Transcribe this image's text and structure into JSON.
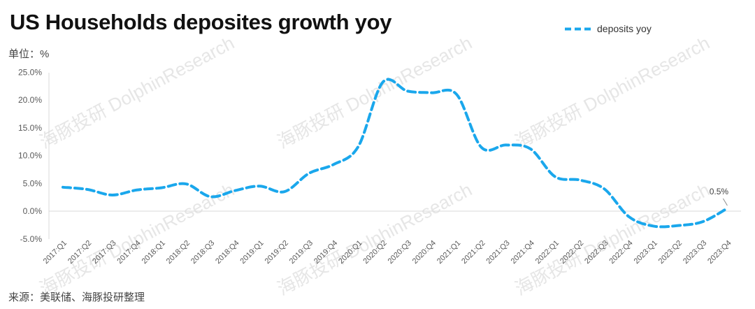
{
  "title": "US Households deposites growth yoy",
  "unit_label": "单位：%",
  "source_label": "来源：美联储、海豚投研整理",
  "watermark": "海豚投研 DolphinResearch",
  "colors": {
    "series": "#1aa7ec",
    "axis": "#d9d9d9",
    "text": "#595959"
  },
  "chart_data": {
    "type": "line",
    "title": "US Households deposites growth yoy",
    "xlabel": "",
    "ylabel": "单位：%",
    "ylim": [
      -5,
      25
    ],
    "ytick_labels": [
      "-5.0%",
      "0.0%",
      "5.0%",
      "10.0%",
      "15.0%",
      "20.0%",
      "25.0%"
    ],
    "grid": false,
    "legend_position": "top-right",
    "categories": [
      "2017:Q1",
      "2017:Q2",
      "2017:Q3",
      "2017:Q4",
      "2018:Q1",
      "2018:Q2",
      "2018:Q3",
      "2018:Q4",
      "2019:Q1",
      "2019:Q2",
      "2019:Q3",
      "2019:Q4",
      "2020:Q1",
      "2020:Q2",
      "2020:Q3",
      "2020:Q4",
      "2021:Q1",
      "2021:Q2",
      "2021:Q3",
      "2021:Q4",
      "2022:Q1",
      "2022:Q2",
      "2022:Q3",
      "2022:Q4",
      "2023:Q1",
      "2023:Q2",
      "2023:Q3",
      "2023:Q4"
    ],
    "series": [
      {
        "name": "deposits yoy",
        "line_style": "dashed",
        "values": [
          4.3,
          3.9,
          2.9,
          3.8,
          4.2,
          4.9,
          2.6,
          3.7,
          4.5,
          3.5,
          6.8,
          8.4,
          11.6,
          23.2,
          21.6,
          21.3,
          21.0,
          11.5,
          11.9,
          11.2,
          6.2,
          5.6,
          4.0,
          -1.0,
          -2.7,
          -2.6,
          -1.9,
          0.5
        ]
      }
    ],
    "annotations": [
      {
        "category": "2023:Q4",
        "text": "0.5%"
      }
    ]
  }
}
